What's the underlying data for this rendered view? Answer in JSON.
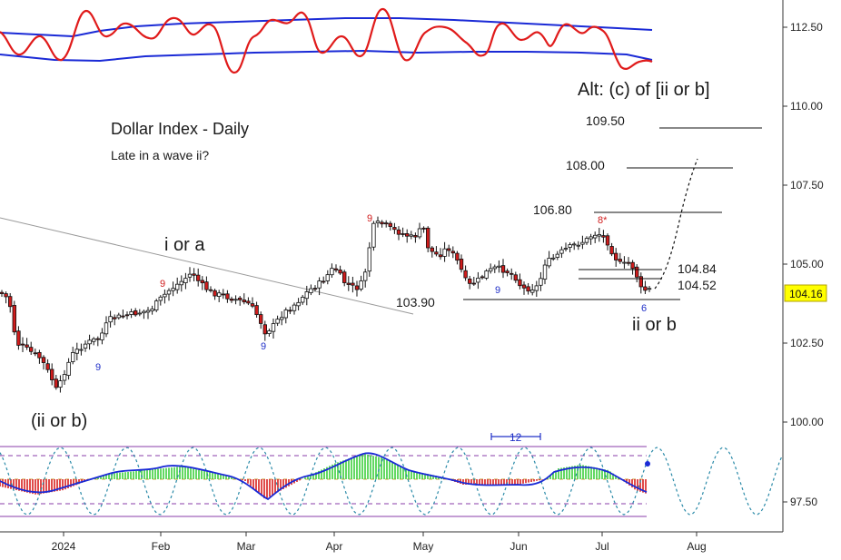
{
  "chart_data": {
    "type": "candlestick",
    "title": "Dollar Index - Daily",
    "subtitle": "Late in a wave ii?",
    "y_ticks": [
      "112.50",
      "110.00",
      "107.50",
      "105.00",
      "102.50",
      "100.00",
      "97.50"
    ],
    "ylim": [
      96.5,
      113.5
    ],
    "x_months": [
      "2024",
      "Feb",
      "Mar",
      "Apr",
      "May",
      "Jun",
      "Jul",
      "Aug"
    ],
    "last_price": "104.16",
    "wave_labels": [
      "i or a",
      "(ii or b)",
      "ii or b",
      "Alt: (c) of [ii or b]"
    ],
    "price_levels": [
      {
        "label": "109.50",
        "value": 109.5
      },
      {
        "label": "108.00",
        "value": 108.0
      },
      {
        "label": "106.80",
        "value": 106.8
      },
      {
        "label": "104.84",
        "value": 104.84
      },
      {
        "label": "104.52",
        "value": 104.52
      },
      {
        "label": "103.90",
        "value": 103.9
      }
    ],
    "count_labels": {
      "blue_nine": "9",
      "red_nine": "9",
      "red_eight": "8*",
      "blue_six": "6"
    },
    "cycle_label": "12",
    "colors": {
      "bull_candle": "#ffffff",
      "bear_candle": "#d01c1c",
      "osc_red": "#e01b1b",
      "band_blue": "#1a2ad6",
      "dashed_projection": "#111111",
      "last_price_bg": "#ffff00",
      "histogram_up": "#3ccf3c",
      "histogram_down": "#d81e1e"
    }
  }
}
